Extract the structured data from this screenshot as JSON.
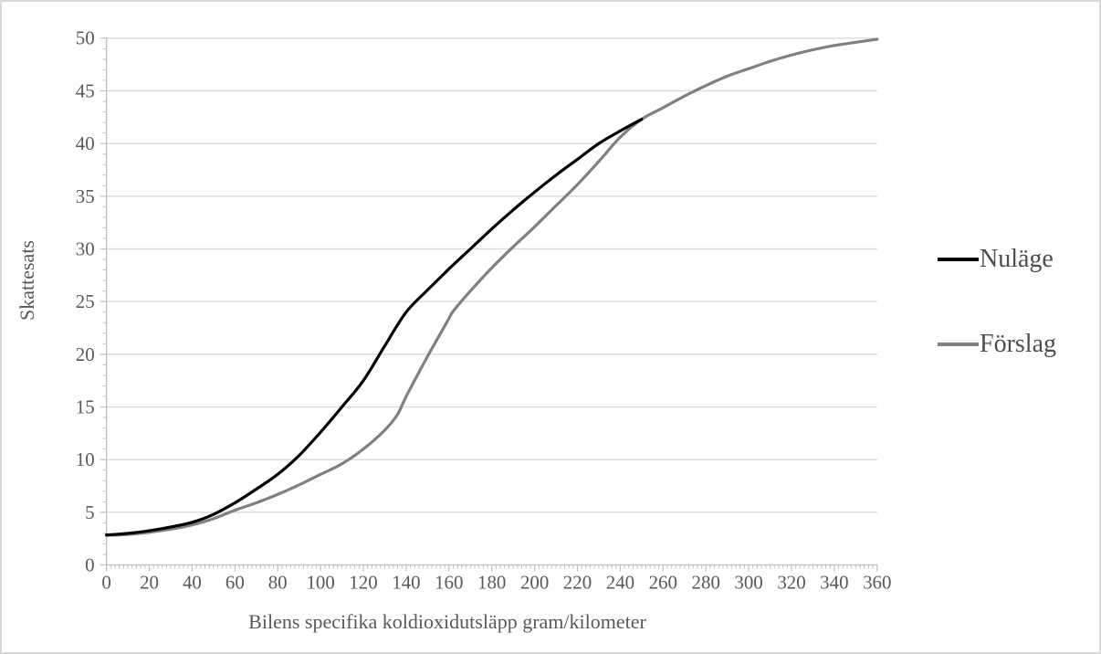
{
  "figure": {
    "background": "#ffffff",
    "border_color": "#d8d8d8"
  },
  "chart_data": {
    "type": "line",
    "title": "",
    "xlabel": "Bilens specifika koldioxidutsläpp gram/kilometer",
    "ylabel": "Skattesats",
    "xlim": [
      0,
      360
    ],
    "ylim": [
      0,
      50
    ],
    "x_ticks": [
      0,
      20,
      40,
      60,
      80,
      100,
      120,
      140,
      160,
      180,
      200,
      220,
      240,
      260,
      280,
      300,
      320,
      340,
      360
    ],
    "y_ticks": [
      0,
      5,
      10,
      15,
      20,
      25,
      30,
      35,
      40,
      45,
      50
    ],
    "x_minor_step": 2,
    "y_minor_step": 1,
    "grid": "horizontal-major",
    "legend_position": "right",
    "colors": {
      "grid": "#d9d9d9",
      "axis": "#bfbfbf",
      "tick": "#bfbfbf",
      "tick_label": "#595959",
      "axis_title": "#595959",
      "legend_text": "#4d4d4d"
    },
    "series": [
      {
        "name": "Nuläge",
        "color": "#000000",
        "stroke_width": 3.2,
        "points": [
          [
            0,
            2.85
          ],
          [
            10,
            3.0
          ],
          [
            20,
            3.25
          ],
          [
            30,
            3.6
          ],
          [
            40,
            4.05
          ],
          [
            50,
            4.8
          ],
          [
            60,
            5.9
          ],
          [
            70,
            7.2
          ],
          [
            80,
            8.6
          ],
          [
            90,
            10.4
          ],
          [
            100,
            12.6
          ],
          [
            110,
            15.0
          ],
          [
            120,
            17.5
          ],
          [
            130,
            20.8
          ],
          [
            140,
            24.0
          ],
          [
            150,
            26.1
          ],
          [
            160,
            28.1
          ],
          [
            170,
            30.0
          ],
          [
            180,
            31.9
          ],
          [
            190,
            33.7
          ],
          [
            200,
            35.4
          ],
          [
            210,
            37.0
          ],
          [
            220,
            38.5
          ],
          [
            230,
            40.0
          ],
          [
            240,
            41.2
          ],
          [
            250,
            42.3
          ]
        ]
      },
      {
        "name": "Förslag",
        "color": "#808080",
        "stroke_width": 3.2,
        "points": [
          [
            0,
            2.8
          ],
          [
            10,
            2.9
          ],
          [
            20,
            3.1
          ],
          [
            30,
            3.4
          ],
          [
            40,
            3.8
          ],
          [
            50,
            4.4
          ],
          [
            60,
            5.2
          ],
          [
            70,
            5.9
          ],
          [
            80,
            6.7
          ],
          [
            90,
            7.6
          ],
          [
            100,
            8.6
          ],
          [
            110,
            9.6
          ],
          [
            120,
            11.0
          ],
          [
            130,
            12.8
          ],
          [
            136,
            14.3
          ],
          [
            140,
            16.0
          ],
          [
            150,
            19.8
          ],
          [
            160,
            23.4
          ],
          [
            162,
            24.1
          ],
          [
            170,
            26.0
          ],
          [
            180,
            28.2
          ],
          [
            190,
            30.2
          ],
          [
            200,
            32.1
          ],
          [
            210,
            34.1
          ],
          [
            220,
            36.1
          ],
          [
            230,
            38.3
          ],
          [
            240,
            40.6
          ],
          [
            250,
            42.3
          ],
          [
            260,
            43.4
          ],
          [
            270,
            44.5
          ],
          [
            280,
            45.5
          ],
          [
            290,
            46.4
          ],
          [
            300,
            47.1
          ],
          [
            310,
            47.8
          ],
          [
            320,
            48.4
          ],
          [
            330,
            48.9
          ],
          [
            340,
            49.3
          ],
          [
            350,
            49.6
          ],
          [
            360,
            49.9
          ]
        ]
      }
    ]
  },
  "legend": {
    "items": [
      {
        "label": "Nuläge",
        "color": "#000000"
      },
      {
        "label": "Förslag",
        "color": "#808080"
      }
    ]
  }
}
